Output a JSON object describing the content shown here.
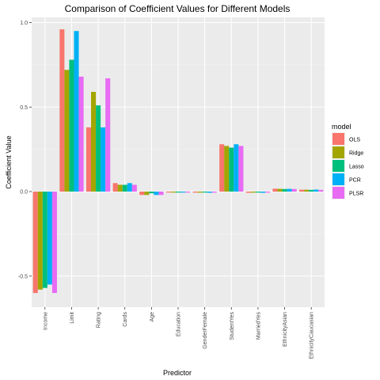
{
  "chart_data": {
    "type": "bar",
    "title": "Comparison of Coefficient Values for Different Models",
    "xlabel": "Predictor",
    "ylabel": "Coefficient Value",
    "ylim": [
      -0.6,
      1.0
    ],
    "yticks": [
      -0.5,
      0.0,
      0.5,
      1.0
    ],
    "ytick_labels": [
      "-0.5",
      "0.0",
      "0.5",
      "1.0"
    ],
    "grid": true,
    "legend": {
      "title": "model",
      "position": "right"
    },
    "categories": [
      "Income",
      "Limit",
      "Rating",
      "Cards",
      "Age",
      "Education",
      "GenderFemale",
      "StudentYes",
      "MarriedYes",
      "EthnicityAsian",
      "EthnicityCaucasian"
    ],
    "series": [
      {
        "name": "OLS",
        "color": "#F8766D",
        "values": [
          -0.6,
          0.96,
          0.38,
          0.05,
          -0.02,
          -0.004,
          -0.006,
          0.28,
          -0.007,
          0.017,
          0.011
        ]
      },
      {
        "name": "Ridge",
        "color": "#A3A500",
        "values": [
          -0.58,
          0.72,
          0.59,
          0.04,
          -0.02,
          -0.003,
          -0.006,
          0.27,
          -0.006,
          0.016,
          0.011
        ]
      },
      {
        "name": "Lasso",
        "color": "#00BF7D",
        "values": [
          -0.57,
          0.78,
          0.51,
          0.04,
          -0.01,
          -0.002,
          -0.005,
          0.26,
          -0.005,
          0.015,
          0.01
        ]
      },
      {
        "name": "PCR",
        "color": "#00B0F6",
        "values": [
          -0.55,
          0.95,
          0.38,
          0.05,
          -0.02,
          -0.003,
          -0.007,
          0.28,
          -0.007,
          0.016,
          0.012
        ]
      },
      {
        "name": "PLSR",
        "color": "#E76BF3",
        "values": [
          -0.6,
          0.68,
          0.67,
          0.04,
          -0.02,
          -0.004,
          -0.006,
          0.27,
          -0.006,
          0.015,
          0.01
        ]
      }
    ]
  }
}
